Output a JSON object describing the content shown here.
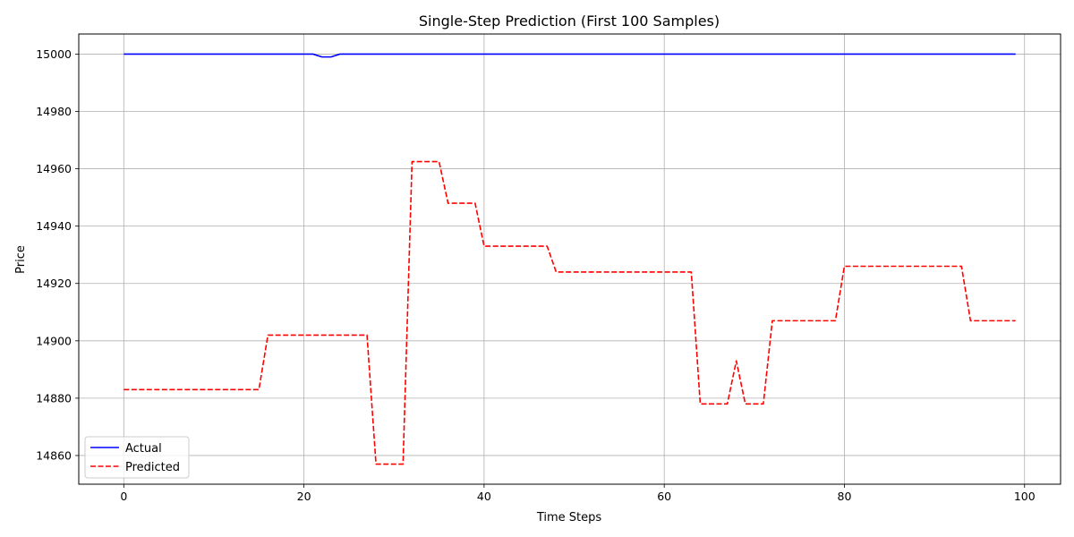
{
  "chart_data": {
    "type": "line",
    "title": "Single-Step Prediction (First 100 Samples)",
    "xlabel": "Time Steps",
    "ylabel": "Price",
    "xlim": [
      -5,
      104
    ],
    "ylim": [
      14850,
      15007
    ],
    "xticks": [
      0,
      20,
      40,
      60,
      80,
      100
    ],
    "yticks": [
      14860,
      14880,
      14900,
      14920,
      14940,
      14960,
      14980,
      15000
    ],
    "grid": true,
    "legend_position": "lower-left",
    "series": [
      {
        "name": "Actual",
        "color": "#0000ff",
        "style": "solid",
        "x": [
          0,
          21,
          22,
          23,
          24,
          99
        ],
        "y": [
          15000,
          15000,
          14999,
          14999,
          15000,
          15000
        ]
      },
      {
        "name": "Predicted",
        "color": "#ff0000",
        "style": "dashed",
        "x": [
          0,
          15,
          16,
          27,
          28,
          31,
          32,
          35,
          36,
          39,
          40,
          47,
          48,
          63,
          64,
          67,
          68,
          69,
          71,
          72,
          79,
          80,
          93,
          94,
          99
        ],
        "y": [
          14883,
          14883,
          14902,
          14902,
          14857,
          14857,
          14962.5,
          14962.5,
          14948,
          14948,
          14933,
          14933,
          14924,
          14924,
          14878,
          14878,
          14893,
          14878,
          14878,
          14907,
          14907,
          14926,
          14926,
          14907,
          14907
        ]
      }
    ]
  }
}
